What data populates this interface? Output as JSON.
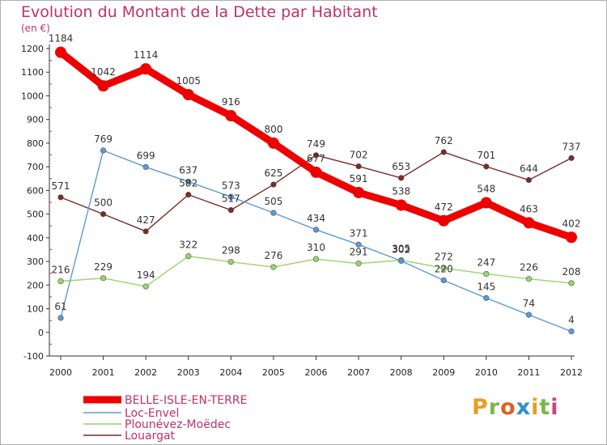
{
  "title": "Evolution du Montant de la Dette par Habitant",
  "unit": "(en €)",
  "logo": {
    "text": "Proxiti",
    "colors": [
      "#e8a020",
      "#7ab648",
      "#e06020",
      "#2a8fd0",
      "#e8a020",
      "#7ab648",
      "#d04080"
    ]
  },
  "chart_data": {
    "type": "line",
    "x": [
      "2000",
      "2001",
      "2002",
      "2003",
      "2004",
      "2005",
      "2006",
      "2007",
      "2008",
      "2009",
      "2010",
      "2011",
      "2012"
    ],
    "ylim": [
      -100,
      1200
    ],
    "yticks": [
      -100,
      0,
      100,
      200,
      300,
      400,
      500,
      600,
      700,
      800,
      900,
      1000,
      1100,
      1200
    ],
    "grid": false,
    "legend": "bottom",
    "series": [
      {
        "name": "BELLE-ISLE-EN-TERRE",
        "color": "#ee0000",
        "values": [
          1184,
          1042,
          1114,
          1005,
          916,
          800,
          677,
          591,
          538,
          472,
          548,
          463,
          402
        ]
      },
      {
        "name": "Loc-Envel",
        "color": "#5b9bd5",
        "values": [
          61,
          769,
          699,
          637,
          573,
          505,
          434,
          371,
          302,
          220,
          145,
          74,
          4
        ]
      },
      {
        "name": "Plounévez-Moëdec",
        "color": "#9ad46a",
        "values": [
          216,
          229,
          194,
          322,
          298,
          276,
          310,
          291,
          305,
          272,
          247,
          226,
          208
        ]
      },
      {
        "name": "Louargat",
        "color": "#7a2a2a",
        "values": [
          571,
          500,
          427,
          582,
          517,
          625,
          749,
          702,
          653,
          762,
          701,
          644,
          737
        ]
      }
    ]
  }
}
